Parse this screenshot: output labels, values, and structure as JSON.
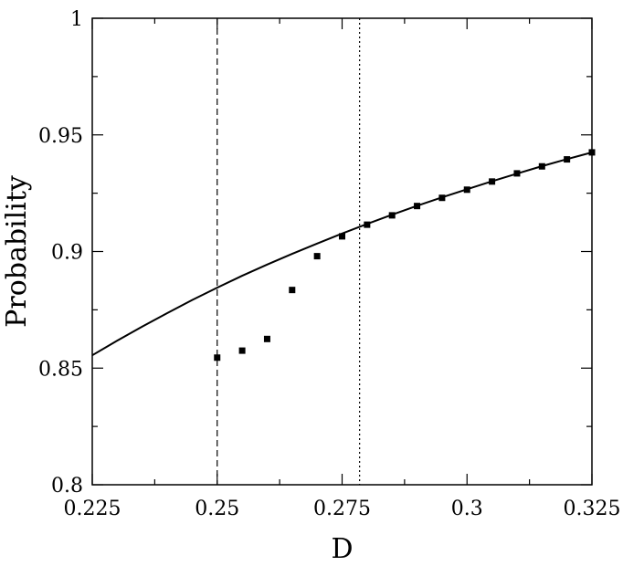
{
  "chart_data": {
    "type": "scatter",
    "xlabel": "D",
    "ylabel": "Probability",
    "xlim": [
      0.225,
      0.325
    ],
    "ylim": [
      0.8,
      1.0
    ],
    "grid": false,
    "legend": "none",
    "x_ticks": [
      {
        "value": 0.225,
        "label": "0.225"
      },
      {
        "value": 0.25,
        "label": "0.25"
      },
      {
        "value": 0.275,
        "label": "0.275"
      },
      {
        "value": 0.3,
        "label": "0.3"
      },
      {
        "value": 0.325,
        "label": "0.325"
      }
    ],
    "x_minor_ticks": [
      0.2375,
      0.2625,
      0.2875,
      0.3125
    ],
    "y_ticks": [
      {
        "value": 0.8,
        "label": "0.8"
      },
      {
        "value": 0.85,
        "label": "0.85"
      },
      {
        "value": 0.9,
        "label": "0.9"
      },
      {
        "value": 0.95,
        "label": "0.95"
      },
      {
        "value": 1.0,
        "label": "1"
      }
    ],
    "y_minor_ticks": [
      0.825,
      0.875,
      0.925,
      0.975
    ],
    "series": [
      {
        "style": "solid-line",
        "color": "#000000",
        "x": [
          0.225,
          0.23,
          0.235,
          0.24,
          0.245,
          0.25,
          0.255,
          0.26,
          0.265,
          0.27,
          0.275,
          0.28,
          0.285,
          0.29,
          0.295,
          0.3,
          0.305,
          0.31,
          0.315,
          0.32,
          0.325
        ],
        "y": [
          0.8555,
          0.8618,
          0.8678,
          0.8736,
          0.8792,
          0.8845,
          0.8896,
          0.8944,
          0.899,
          0.9034,
          0.9077,
          0.9118,
          0.9158,
          0.9196,
          0.9232,
          0.9267,
          0.9301,
          0.9334,
          0.9366,
          0.9396,
          0.9425
        ]
      },
      {
        "style": "square-markers",
        "color": "#000000",
        "x": [
          0.25,
          0.255,
          0.26,
          0.265,
          0.27,
          0.275,
          0.28,
          0.285,
          0.29,
          0.295,
          0.3,
          0.305,
          0.31,
          0.315,
          0.32,
          0.325
        ],
        "y": [
          0.8545,
          0.8575,
          0.8625,
          0.8835,
          0.898,
          0.9065,
          0.9115,
          0.9155,
          0.9195,
          0.923,
          0.9265,
          0.93,
          0.9335,
          0.9365,
          0.9395,
          0.9425
        ]
      }
    ],
    "reference_lines": [
      {
        "axis": "x",
        "value": 0.25,
        "style": "dashed"
      },
      {
        "axis": "x",
        "value": 0.2785,
        "style": "dotted"
      }
    ]
  }
}
